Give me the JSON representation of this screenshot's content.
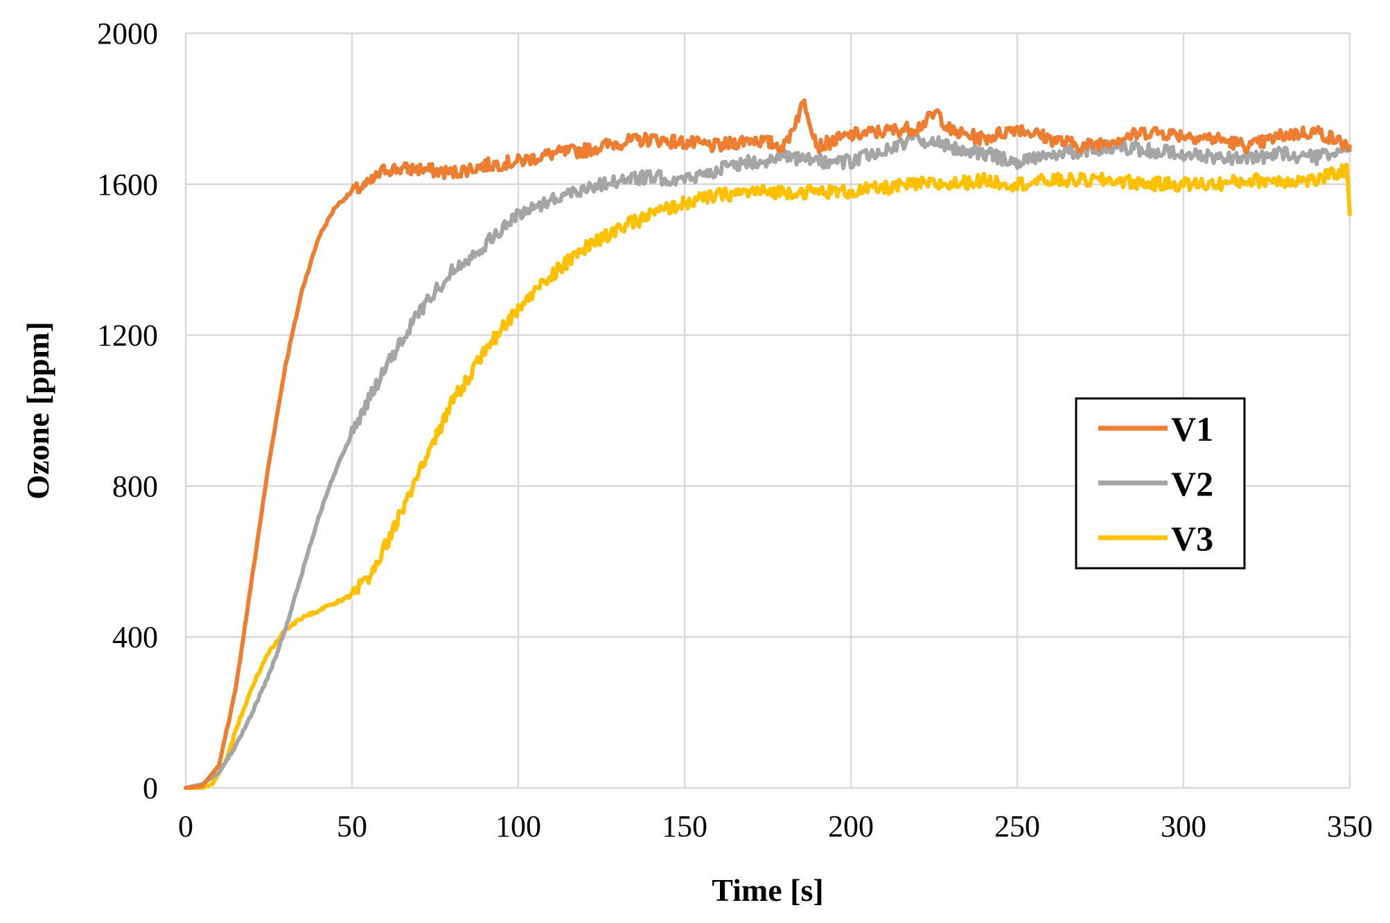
{
  "chart_data": {
    "type": "line",
    "title": "",
    "xlabel": "Time [s]",
    "ylabel": "Ozone [ppm]",
    "xlim": [
      0,
      350
    ],
    "ylim": [
      0,
      2000
    ],
    "xticks": [
      0,
      50,
      100,
      150,
      200,
      250,
      300,
      350
    ],
    "yticks": [
      0,
      400,
      800,
      1200,
      1600,
      2000
    ],
    "grid": true,
    "legend_position": "right",
    "series": [
      {
        "name": "V1",
        "color": "#ED7D31",
        "x": [
          0,
          5,
          10,
          15,
          20,
          25,
          30,
          35,
          40,
          45,
          50,
          55,
          60,
          70,
          80,
          90,
          100,
          110,
          120,
          130,
          140,
          150,
          160,
          170,
          180,
          186,
          190,
          200,
          210,
          220,
          226,
          230,
          240,
          250,
          260,
          270,
          280,
          290,
          300,
          310,
          320,
          330,
          340,
          350
        ],
        "y": [
          0,
          5,
          60,
          260,
          560,
          860,
          1120,
          1320,
          1460,
          1540,
          1580,
          1600,
          1640,
          1640,
          1630,
          1650,
          1660,
          1680,
          1690,
          1710,
          1720,
          1710,
          1700,
          1720,
          1700,
          1820,
          1700,
          1730,
          1740,
          1750,
          1790,
          1740,
          1720,
          1750,
          1720,
          1700,
          1720,
          1740,
          1730,
          1720,
          1700,
          1730,
          1740,
          1700
        ]
      },
      {
        "name": "V2",
        "color": "#A5A5A5",
        "x": [
          0,
          5,
          10,
          15,
          20,
          25,
          30,
          35,
          40,
          45,
          50,
          55,
          60,
          70,
          80,
          90,
          100,
          110,
          120,
          130,
          140,
          150,
          160,
          170,
          180,
          190,
          200,
          210,
          220,
          230,
          240,
          250,
          260,
          270,
          280,
          290,
          300,
          310,
          320,
          330,
          340,
          350
        ],
        "y": [
          0,
          10,
          40,
          110,
          200,
          300,
          420,
          570,
          720,
          840,
          940,
          1030,
          1110,
          1260,
          1370,
          1440,
          1520,
          1560,
          1590,
          1610,
          1620,
          1610,
          1640,
          1660,
          1670,
          1660,
          1660,
          1690,
          1720,
          1700,
          1680,
          1660,
          1680,
          1690,
          1700,
          1690,
          1680,
          1670,
          1670,
          1680,
          1670,
          1690
        ]
      },
      {
        "name": "V3",
        "color": "#FFC000",
        "x": [
          0,
          5,
          8,
          12,
          15,
          20,
          25,
          30,
          35,
          40,
          45,
          50,
          55,
          60,
          70,
          80,
          90,
          100,
          110,
          120,
          130,
          140,
          150,
          160,
          170,
          180,
          190,
          200,
          210,
          220,
          230,
          240,
          250,
          260,
          270,
          280,
          290,
          300,
          310,
          320,
          330,
          340,
          349,
          350
        ],
        "y": [
          0,
          0,
          10,
          70,
          150,
          270,
          360,
          420,
          450,
          470,
          490,
          510,
          560,
          640,
          830,
          1020,
          1160,
          1270,
          1360,
          1430,
          1480,
          1520,
          1550,
          1570,
          1580,
          1580,
          1580,
          1580,
          1590,
          1600,
          1600,
          1610,
          1600,
          1610,
          1610,
          1610,
          1600,
          1600,
          1600,
          1610,
          1610,
          1610,
          1640,
          1520
        ]
      }
    ]
  }
}
